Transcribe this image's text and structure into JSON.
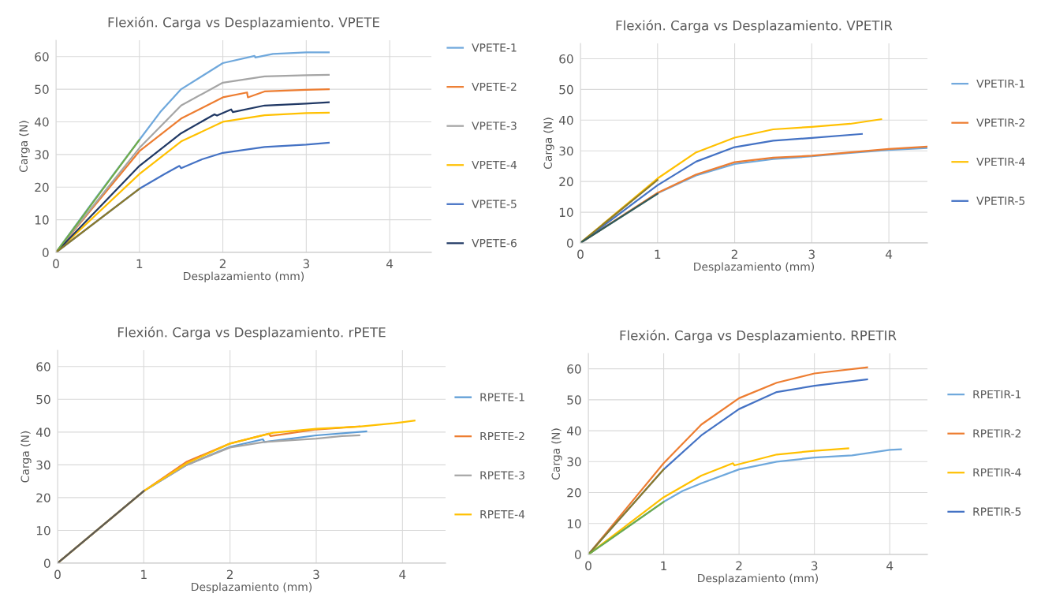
{
  "chart_data": [
    {
      "type": "line",
      "title": "Flexión. Carga vs Desplazamiento. VPETE",
      "xlabel": "Desplazamiento (mm)",
      "ylabel": "Carga (N)",
      "xlim": [
        0,
        4.5
      ],
      "xticks": [
        0,
        1,
        2,
        3,
        4
      ],
      "ylim": [
        0,
        65
      ],
      "yticks": [
        0,
        10,
        20,
        30,
        40,
        50,
        60
      ],
      "grid": true,
      "legend": "right",
      "marker": "none",
      "line_style": "solid",
      "series": [
        {
          "name": "VPETE-1",
          "color": "#6fa8dc",
          "x": [
            0,
            0.5,
            1,
            1.25,
            1.5,
            2,
            2.38,
            2.39,
            2.6,
            3,
            3.27
          ],
          "values": [
            0,
            17.5,
            34.5,
            43,
            50,
            58,
            60.2,
            59.7,
            60.8,
            61.3,
            61.3
          ]
        },
        {
          "name": "VPETE-2",
          "color": "#ed7d31",
          "x": [
            0,
            1,
            1.5,
            2,
            2.29,
            2.3,
            2.5,
            3,
            3.27
          ],
          "values": [
            0,
            31,
            41,
            47.5,
            49,
            47.5,
            49.3,
            49.8,
            50
          ]
        },
        {
          "name": "VPETE-3",
          "color": "#a5a5a5",
          "x": [
            0,
            1,
            1.5,
            2,
            2.5,
            3,
            3.27
          ],
          "values": [
            0,
            32,
            45,
            52,
            53.9,
            54.3,
            54.4
          ]
        },
        {
          "name": "VPETE-4",
          "color": "#ffc000",
          "x": [
            0,
            1,
            1.5,
            2,
            2.5,
            3,
            3.27
          ],
          "values": [
            0,
            24,
            34,
            40,
            42,
            42.7,
            42.8
          ]
        },
        {
          "name": "VPETE-5",
          "color": "#4472c4",
          "x": [
            0,
            1,
            1.3,
            1.48,
            1.5,
            1.75,
            2,
            2.5,
            3,
            3.27
          ],
          "values": [
            0,
            19.5,
            24,
            26.5,
            25.8,
            28.5,
            30.5,
            32.3,
            33,
            33.6
          ]
        },
        {
          "name": "VPETE-6",
          "color": "#203864",
          "x": [
            0,
            1,
            1.5,
            1.9,
            1.93,
            2.1,
            2.12,
            2.5,
            3,
            3.27
          ],
          "values": [
            0,
            26.5,
            36.5,
            42.3,
            41.9,
            43.8,
            43,
            45,
            45.6,
            46
          ]
        },
        {
          "color": "#70ad47",
          "x": [
            0,
            1
          ],
          "values": [
            0,
            34.5
          ]
        },
        {
          "color": "#8c7b2a",
          "x": [
            0,
            1
          ],
          "values": [
            0,
            19.5
          ]
        }
      ]
    },
    {
      "type": "line",
      "title": "Flexión. Carga vs Desplazamiento. VPETIR",
      "xlabel": "Desplazamiento (mm)",
      "ylabel": "Carga (N)",
      "xlim": [
        0,
        4.5
      ],
      "xticks": [
        0,
        1,
        2,
        3,
        4
      ],
      "ylim": [
        0,
        65
      ],
      "yticks": [
        0,
        10,
        20,
        30,
        40,
        50,
        60
      ],
      "grid": true,
      "legend": "right",
      "marker": "none",
      "line_style": "solid",
      "series": [
        {
          "name": "VPETIR-1",
          "color": "#6fa8dc",
          "x": [
            0,
            1,
            1.5,
            2,
            2.5,
            3,
            3.5,
            4,
            4.5
          ],
          "values": [
            0,
            16.2,
            22,
            25.7,
            27.3,
            28.2,
            29.3,
            30.3,
            30.9
          ]
        },
        {
          "name": "VPETIR-2",
          "color": "#ed7d31",
          "x": [
            0,
            1,
            1.5,
            2,
            2.5,
            3,
            3.5,
            4,
            4.5
          ],
          "values": [
            0,
            16.3,
            22.3,
            26.3,
            27.8,
            28.4,
            29.5,
            30.6,
            31.4
          ]
        },
        {
          "name": "VPETIR-4",
          "color": "#ffc000",
          "x": [
            0,
            1,
            1.5,
            2,
            2.5,
            3,
            3.5,
            3.9
          ],
          "values": [
            0,
            21,
            29.5,
            34.3,
            37,
            37.8,
            38.8,
            40.3
          ]
        },
        {
          "name": "VPETIR-5",
          "color": "#4472c4",
          "x": [
            0,
            1,
            1.5,
            2,
            2.5,
            3,
            3.65
          ],
          "values": [
            0,
            18.8,
            26.5,
            31.2,
            33.3,
            34.2,
            35.5
          ]
        },
        {
          "color": "#8c7b2a",
          "x": [
            0,
            1
          ],
          "values": [
            0,
            20.5
          ]
        },
        {
          "color": "#2f5a5a",
          "x": [
            0,
            1
          ],
          "values": [
            0,
            16
          ]
        }
      ]
    },
    {
      "type": "line",
      "title": "Flexión. Carga vs Desplazamiento. rPETE",
      "xlabel": "Desplazamiento (mm)",
      "ylabel": "Carga (N)",
      "xlim": [
        0,
        4.5
      ],
      "xticks": [
        0,
        1,
        2,
        3,
        4
      ],
      "ylim": [
        0,
        65
      ],
      "yticks": [
        0,
        10,
        20,
        30,
        40,
        50,
        60
      ],
      "grid": true,
      "legend": "right",
      "marker": "none",
      "line_style": "solid",
      "series": [
        {
          "name": "RPETE-1",
          "color": "#5b9bd5",
          "x": [
            0,
            1,
            1.5,
            2,
            2.38,
            2.4,
            3,
            3.58
          ],
          "values": [
            0,
            22,
            30,
            35.5,
            37.8,
            37,
            39,
            40.2
          ]
        },
        {
          "name": "RPETE-2",
          "color": "#ed7d31",
          "x": [
            0,
            1,
            1.5,
            2,
            2.45,
            2.47,
            3,
            3.5
          ],
          "values": [
            0,
            22,
            31,
            36.5,
            39.5,
            38.8,
            40.8,
            41.7
          ]
        },
        {
          "name": "RPETE-3",
          "color": "#a5a5a5",
          "x": [
            0,
            1,
            1.5,
            2,
            2.4,
            3,
            3.3,
            3.5
          ],
          "values": [
            0,
            22,
            30,
            35.3,
            37,
            38,
            38.8,
            39
          ]
        },
        {
          "name": "RPETE-4",
          "color": "#ffc000",
          "x": [
            0,
            1,
            1.5,
            2,
            2.5,
            3,
            3.5,
            3.9,
            4.14
          ],
          "values": [
            0,
            22,
            30.5,
            36.5,
            39.8,
            41,
            41.7,
            42.7,
            43.5
          ]
        },
        {
          "color": "#595959",
          "x": [
            0,
            1
          ],
          "values": [
            0,
            22
          ]
        }
      ]
    },
    {
      "type": "line",
      "title": "Flexión. Carga vs Desplazamiento. RPETIR",
      "xlabel": "Desplazamiento (mm)",
      "ylabel": "Carga (N)",
      "xlim": [
        0,
        4.5
      ],
      "xticks": [
        0,
        1,
        2,
        3,
        4
      ],
      "ylim": [
        0,
        65
      ],
      "yticks": [
        0,
        10,
        20,
        30,
        40,
        50,
        60
      ],
      "grid": true,
      "legend": "right",
      "marker": "none",
      "line_style": "solid",
      "series": [
        {
          "name": "RPETIR-1",
          "color": "#6fa8dc",
          "x": [
            0,
            1,
            1.25,
            1.5,
            2,
            2.5,
            3,
            3.5,
            3.7,
            4,
            4.15
          ],
          "values": [
            0,
            17,
            20.5,
            23,
            27.5,
            30,
            31.3,
            32,
            32.7,
            33.8,
            34
          ]
        },
        {
          "name": "RPETIR-2",
          "color": "#ed7d31",
          "x": [
            0,
            1,
            1.5,
            2,
            2.5,
            3,
            3.7
          ],
          "values": [
            0,
            29.5,
            42,
            50.5,
            55.5,
            58.5,
            60.5
          ]
        },
        {
          "name": "RPETIR-4",
          "color": "#ffc000",
          "x": [
            0,
            1,
            1.5,
            1.92,
            1.94,
            2.5,
            3,
            3.45
          ],
          "values": [
            0,
            18.5,
            25.5,
            29.5,
            28.8,
            32.3,
            33.5,
            34.3
          ]
        },
        {
          "name": "RPETIR-5",
          "color": "#4472c4",
          "x": [
            0,
            1,
            1.5,
            2,
            2.5,
            3,
            3.7
          ],
          "values": [
            0,
            27.5,
            38.5,
            47,
            52.5,
            54.5,
            56.6
          ]
        },
        {
          "color": "#8c7b2a",
          "x": [
            0,
            1
          ],
          "values": [
            0,
            27.5
          ]
        },
        {
          "color": "#70ad47",
          "x": [
            0,
            1
          ],
          "values": [
            0,
            17
          ]
        }
      ]
    }
  ]
}
